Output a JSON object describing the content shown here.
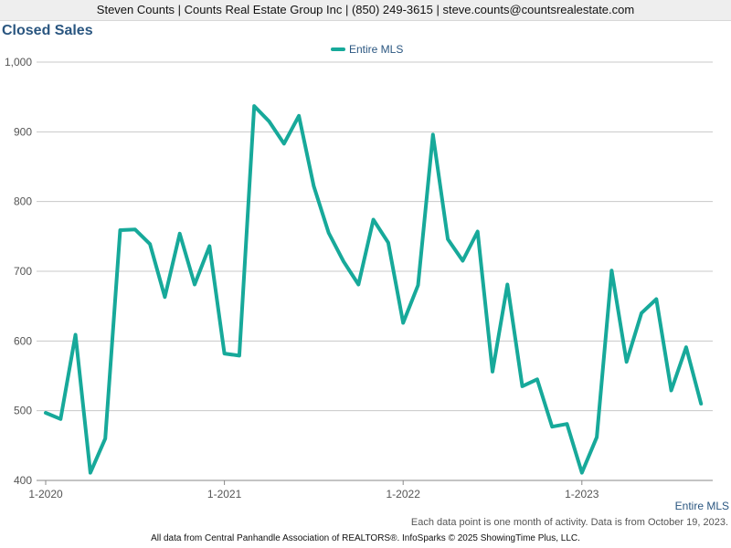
{
  "header": {
    "contact": "Steven Counts | Counts Real Estate Group Inc | (850) 249-3615 | steve.counts@countsrealestate.com"
  },
  "footer": {
    "note": "Each data point is one month of activity. Data is from October 19, 2023.",
    "credit": "All data from Central Panhandle Association of REALTORS®. InfoSparks © 2025 ShowingTime Plus, LLC."
  },
  "chart_data": {
    "type": "line",
    "title": "Closed Sales",
    "legend_position": "top-center",
    "grid": true,
    "ylim": [
      400,
      1000
    ],
    "yticks": [
      400,
      500,
      600,
      700,
      800,
      900,
      1000
    ],
    "ytick_labels": [
      "400",
      "500",
      "600",
      "700",
      "800",
      "900",
      "1,000"
    ],
    "x_start": "2020-01",
    "xticks": [
      "2020-01",
      "2021-01",
      "2022-01",
      "2023-01"
    ],
    "xtick_labels": [
      "1-2020",
      "1-2021",
      "1-2022",
      "1-2023"
    ],
    "end_label": "Entire MLS",
    "series": [
      {
        "name": "Entire MLS",
        "color": "#17a99a",
        "x": [
          "2020-01",
          "2020-02",
          "2020-03",
          "2020-04",
          "2020-05",
          "2020-06",
          "2020-07",
          "2020-08",
          "2020-09",
          "2020-10",
          "2020-11",
          "2020-12",
          "2021-01",
          "2021-02",
          "2021-03",
          "2021-04",
          "2021-05",
          "2021-06",
          "2021-07",
          "2021-08",
          "2021-09",
          "2021-10",
          "2021-11",
          "2021-12",
          "2022-01",
          "2022-02",
          "2022-03",
          "2022-04",
          "2022-05",
          "2022-06",
          "2022-07",
          "2022-08",
          "2022-09",
          "2022-10",
          "2022-11",
          "2022-12",
          "2023-01",
          "2023-02",
          "2023-03",
          "2023-04",
          "2023-05",
          "2023-06",
          "2023-07",
          "2023-08",
          "2023-09"
        ],
        "values": [
          497,
          488,
          609,
          411,
          460,
          759,
          760,
          739,
          663,
          754,
          681,
          736,
          582,
          579,
          937,
          915,
          883,
          923,
          822,
          755,
          714,
          681,
          774,
          741,
          626,
          680,
          896,
          746,
          715,
          757,
          556,
          681,
          535,
          545,
          477,
          481,
          411,
          462,
          701,
          570,
          640,
          660,
          529,
          591,
          510
        ]
      }
    ]
  }
}
